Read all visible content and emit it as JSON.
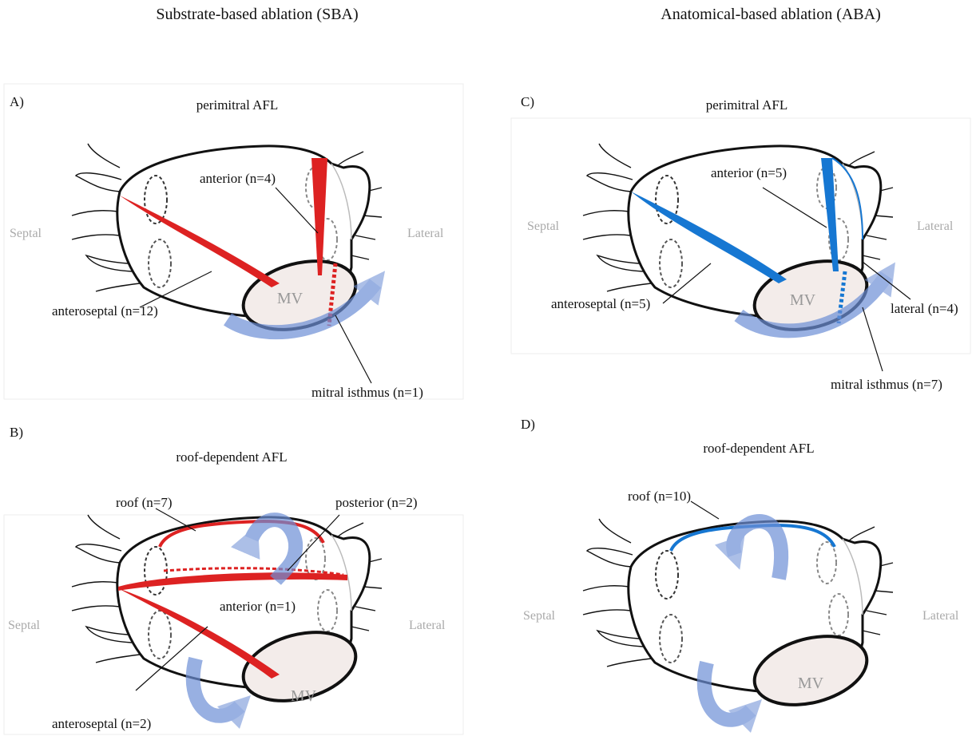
{
  "headers": [
    "Substrate-based ablation (SBA)",
    "Anatomical-based ablation (ABA)"
  ],
  "panels": [
    {
      "letter": "A)",
      "title": "perimitral AFL",
      "septal": "Septal",
      "lateral": "Lateral",
      "mv": "MV",
      "labels": [
        "anterior (n=4)",
        "anteroseptal (n=12)",
        "mitral isthmus (n=1)"
      ]
    },
    {
      "letter": "B)",
      "title": "roof-dependent AFL",
      "septal": "Septal",
      "lateral": "Lateral",
      "mv": "MV",
      "labels": [
        "roof (n=7)",
        "posterior (n=2)",
        "anterior (n=1)",
        "anteroseptal (n=2)"
      ]
    },
    {
      "letter": "C)",
      "title": "perimitral AFL",
      "septal": "Septal",
      "lateral": "Lateral",
      "mv": "MV",
      "labels": [
        "anterior (n=5)",
        "anteroseptal (n=5)",
        "lateral (n=4)",
        "mitral isthmus (n=7)"
      ]
    },
    {
      "letter": "D)",
      "title": "roof-dependent AFL",
      "septal": "Septal",
      "lateral": "Lateral",
      "mv": "MV",
      "labels": [
        "roof (n=10)"
      ]
    }
  ]
}
